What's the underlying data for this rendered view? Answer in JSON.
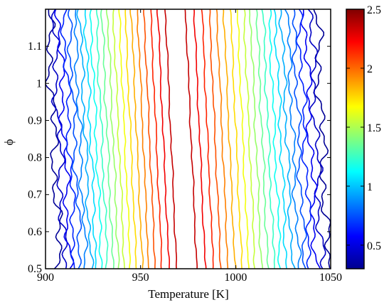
{
  "chart_data": {
    "type": "contour",
    "title": "",
    "xlabel": "Temperature [K]",
    "ylabel": "ϕ",
    "xlim": [
      900,
      1050
    ],
    "ylim": [
      0.5,
      1.2
    ],
    "xticks": [
      900,
      950,
      1000,
      1050
    ],
    "xtick_labels": [
      "900",
      "950",
      "1000",
      "1050"
    ],
    "yticks": [
      0.5,
      0.6,
      0.7,
      0.8,
      0.9,
      1.0,
      1.1
    ],
    "ytick_labels": [
      "0.5",
      "0.6",
      "0.7",
      "0.8",
      "0.9",
      "1",
      "1.1"
    ],
    "colorbar": {
      "colormap": "jet",
      "range": [
        0.3,
        2.5
      ],
      "ticks": [
        0.5,
        1,
        1.5,
        2,
        2.5
      ],
      "tick_labels": [
        "0.5",
        "1",
        "1.5",
        "2",
        "2.5"
      ]
    },
    "field": {
      "description_of_shape": "ridge centered near T = 974 K at phi = 0.5 rising to about 2.5, falling to about 0.3 at both temperature ends",
      "peak_value": 2.45,
      "min_value": 0.3,
      "ridge_center_T_at_phi_min": 974,
      "ridge_center_T_at_phi_max": 968
    },
    "contour_levels": [
      0.35,
      0.45,
      0.55,
      0.65,
      0.75,
      0.85,
      0.95,
      1.05,
      1.15,
      1.25,
      1.35,
      1.45,
      1.55,
      1.65,
      1.75,
      1.85,
      1.95,
      2.05,
      2.15,
      2.25,
      2.35
    ]
  }
}
